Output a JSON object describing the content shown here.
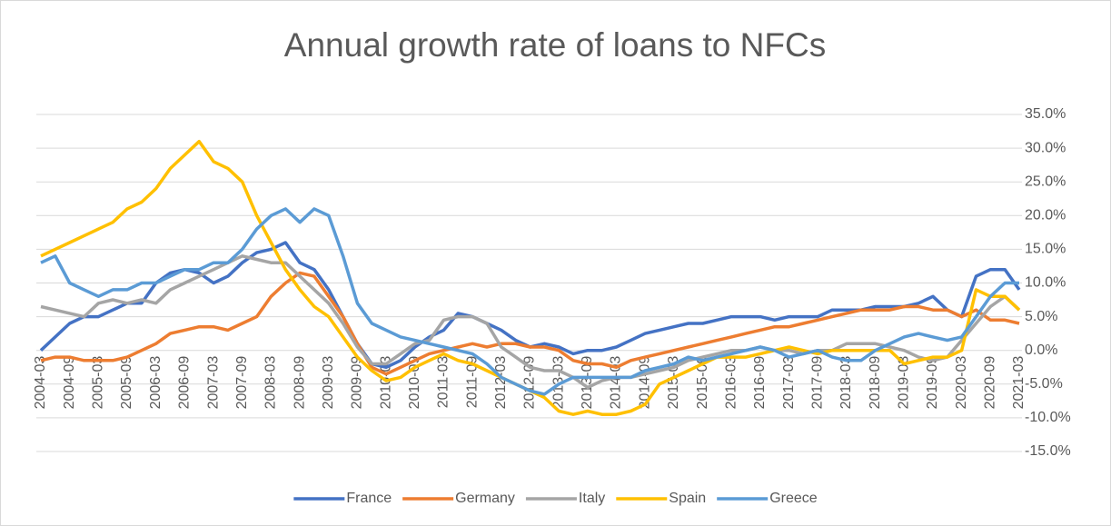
{
  "chart_data": {
    "type": "line",
    "title": "Annual growth rate of loans to NFCs",
    "categories": [
      "2004-03",
      null,
      "2004-09",
      null,
      "2005-03",
      null,
      "2005-09",
      null,
      "2006-03",
      null,
      "2006-09",
      null,
      "2007-03",
      null,
      "2007-09",
      null,
      "2008-03",
      null,
      "2008-09",
      null,
      "2009-03",
      null,
      "2009-09",
      null,
      "2010-03",
      null,
      "2010-09",
      null,
      "2011-03",
      null,
      "2011-09",
      null,
      "2012-03",
      null,
      "2012-09",
      null,
      "2013-03",
      null,
      "2013-09",
      null,
      "2014-03",
      null,
      "2014-09",
      null,
      "2015-03",
      null,
      "2015-09",
      null,
      "2016-03",
      null,
      "2016-09",
      null,
      "2017-03",
      null,
      "2017-09",
      null,
      "2018-03",
      null,
      "2018-09",
      null,
      "2019-03",
      null,
      "2019-09",
      null,
      "2020-03",
      null,
      "2020-09",
      null,
      "2021-03"
    ],
    "series": [
      {
        "name": "France",
        "color": "#4472c4",
        "values": [
          0,
          2,
          4,
          5,
          5,
          6,
          7,
          7,
          10,
          11.5,
          12,
          11.5,
          10,
          11,
          13,
          14.5,
          15,
          16,
          13,
          12,
          9,
          5,
          1,
          -2,
          -2.5,
          -1.5,
          0.5,
          2,
          3,
          5.5,
          5,
          4,
          3,
          1.5,
          0.5,
          1,
          0.5,
          -0.5,
          0,
          0,
          0.5,
          1.5,
          2.5,
          3,
          3.5,
          4,
          4,
          4.5,
          5,
          5,
          5,
          4.5,
          5,
          5,
          5,
          6,
          6,
          6,
          6.5,
          6.5,
          6.5,
          7,
          8,
          6,
          5,
          11,
          12,
          12,
          9
        ]
      },
      {
        "name": "Germany",
        "color": "#ed7d31",
        "values": [
          -1.5,
          -1,
          -1,
          -1.5,
          -1.5,
          -1.5,
          -1,
          0,
          1,
          2.5,
          3,
          3.5,
          3.5,
          3,
          4,
          5,
          8,
          10,
          11.5,
          11,
          8,
          5,
          1,
          -2.5,
          -3.5,
          -2.5,
          -1.5,
          -0.5,
          0,
          0.5,
          1,
          0.5,
          1,
          1,
          0.5,
          0.5,
          0,
          -1.5,
          -2,
          -2,
          -2.5,
          -1.5,
          -1,
          -0.5,
          0,
          0.5,
          1,
          1.5,
          2,
          2.5,
          3,
          3.5,
          3.5,
          4,
          4.5,
          5,
          5.5,
          6,
          6,
          6,
          6.5,
          6.5,
          6,
          6,
          5,
          6,
          4.5,
          4.5,
          4
        ]
      },
      {
        "name": "Italy",
        "color": "#a5a5a5",
        "values": [
          6.5,
          6,
          5.5,
          5,
          7,
          7.5,
          7,
          7.5,
          7,
          9,
          10,
          11,
          12,
          13,
          14,
          13.5,
          13,
          13,
          11,
          9,
          7,
          4,
          0.5,
          -2,
          -2,
          -0.5,
          1,
          1.5,
          4.5,
          5,
          5,
          4,
          0.5,
          -1,
          -2.5,
          -3,
          -3,
          -4,
          -5.5,
          -4.5,
          -4,
          -4,
          -3.5,
          -3,
          -2.5,
          -1.5,
          -1,
          -0.5,
          0,
          0,
          0.5,
          0,
          0,
          -0.5,
          0,
          0,
          1,
          1,
          1,
          0.5,
          0,
          -1,
          -1.5,
          -1,
          1.5,
          4,
          6.5,
          8,
          6
        ]
      },
      {
        "name": "Spain",
        "color": "#ffc000",
        "values": [
          14,
          15,
          16,
          17,
          18,
          19,
          21,
          22,
          24,
          27,
          29,
          31,
          28,
          27,
          25,
          20,
          16,
          12,
          9,
          6.5,
          5,
          2,
          -1,
          -3,
          -4.5,
          -4,
          -2.5,
          -1.5,
          -0.5,
          -1.5,
          -2,
          -3,
          -4,
          -5,
          -6,
          -7,
          -9,
          -9.5,
          -9,
          -9.5,
          -9.5,
          -9,
          -8,
          -5,
          -4,
          -3,
          -2,
          -1,
          -1,
          -1,
          -0.5,
          0,
          0.5,
          0,
          -0.5,
          0,
          0,
          0,
          0,
          0,
          -2,
          -1.5,
          -1,
          -1,
          0,
          9,
          8,
          8,
          6
        ]
      },
      {
        "name": "Greece",
        "color": "#5b9bd5",
        "values": [
          13,
          14,
          10,
          9,
          8,
          9,
          9,
          10,
          10,
          11,
          12,
          12,
          13,
          13,
          15,
          18,
          20,
          21,
          19,
          21,
          20,
          14,
          7,
          4,
          3,
          2,
          1.5,
          1,
          0.5,
          0,
          -0.5,
          -2,
          -4,
          -5,
          -6,
          -6.5,
          -5,
          -4,
          -4,
          -4,
          -4,
          -4,
          -3,
          -2.5,
          -2,
          -1,
          -1.5,
          -1,
          -0.5,
          0,
          0.5,
          0,
          -1,
          -0.5,
          0,
          -1,
          -1.5,
          -1.5,
          0,
          1,
          2,
          2.5,
          2,
          1.5,
          2,
          5,
          8,
          10,
          10
        ]
      }
    ],
    "ylim": [
      -15,
      35
    ],
    "yticks": [
      {
        "value": -15,
        "label": "-15.0%"
      },
      {
        "value": -10,
        "label": "-10.0%"
      },
      {
        "value": -5,
        "label": "-5.0%"
      },
      {
        "value": 0,
        "label": "0.0%"
      },
      {
        "value": 5,
        "label": "5.0%"
      },
      {
        "value": 10,
        "label": "10.0%"
      },
      {
        "value": 15,
        "label": "15.0%"
      },
      {
        "value": 20,
        "label": "20.0%"
      },
      {
        "value": 25,
        "label": "25.0%"
      },
      {
        "value": 30,
        "label": "30.0%"
      },
      {
        "value": 35,
        "label": "35.0%"
      }
    ],
    "grid": true,
    "legend": "bottom"
  }
}
